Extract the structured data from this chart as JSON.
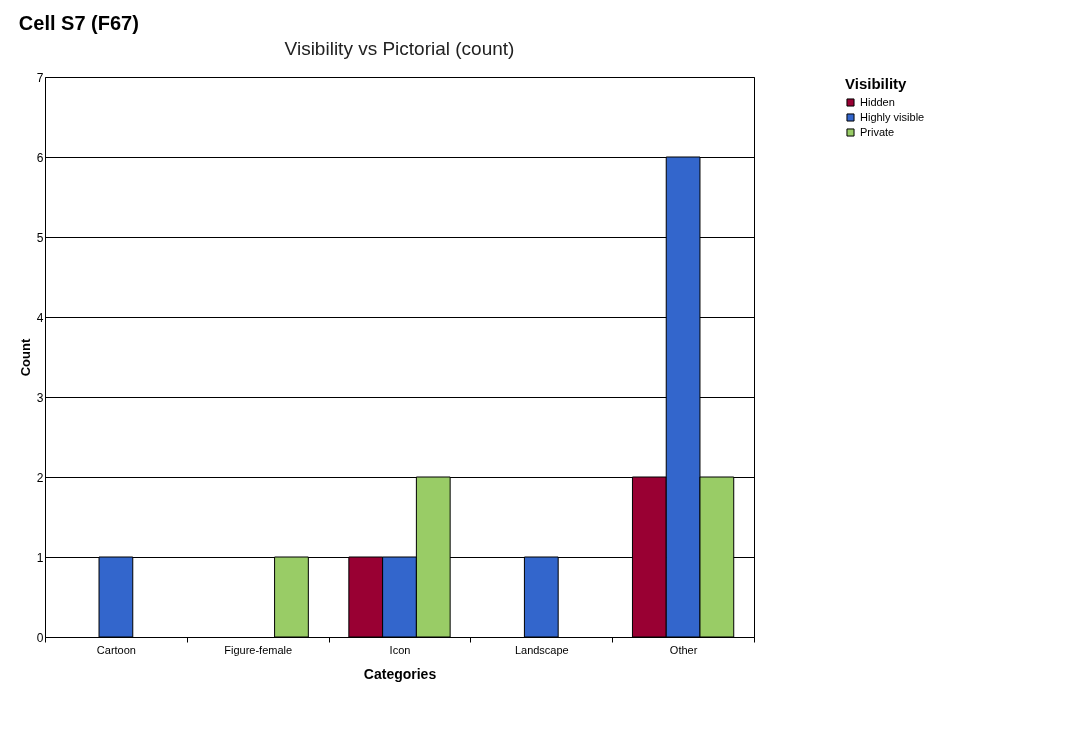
{
  "chart_data": {
    "type": "bar",
    "title": "Cell S7 (F67)",
    "subtitle": "Visibility vs Pictorial (count)",
    "xlabel": "Categories",
    "ylabel": "Count",
    "legend_title": "Visibility",
    "categories": [
      "Cartoon",
      "Figure-female",
      "Icon",
      "Landscape",
      "Other"
    ],
    "series": [
      {
        "name": "Hidden",
        "color": "#990033",
        "values": [
          0,
          0,
          1,
          0,
          2
        ]
      },
      {
        "name": "Highly visible",
        "color": "#3366cc",
        "values": [
          1,
          0,
          1,
          1,
          6
        ]
      },
      {
        "name": "Private",
        "color": "#99cc66",
        "values": [
          0,
          1,
          2,
          0,
          2
        ]
      }
    ],
    "ylim": [
      0,
      7
    ],
    "yticks": [
      0,
      1,
      2,
      3,
      4,
      5,
      6,
      7
    ],
    "grid": "y",
    "legend": "top right"
  }
}
